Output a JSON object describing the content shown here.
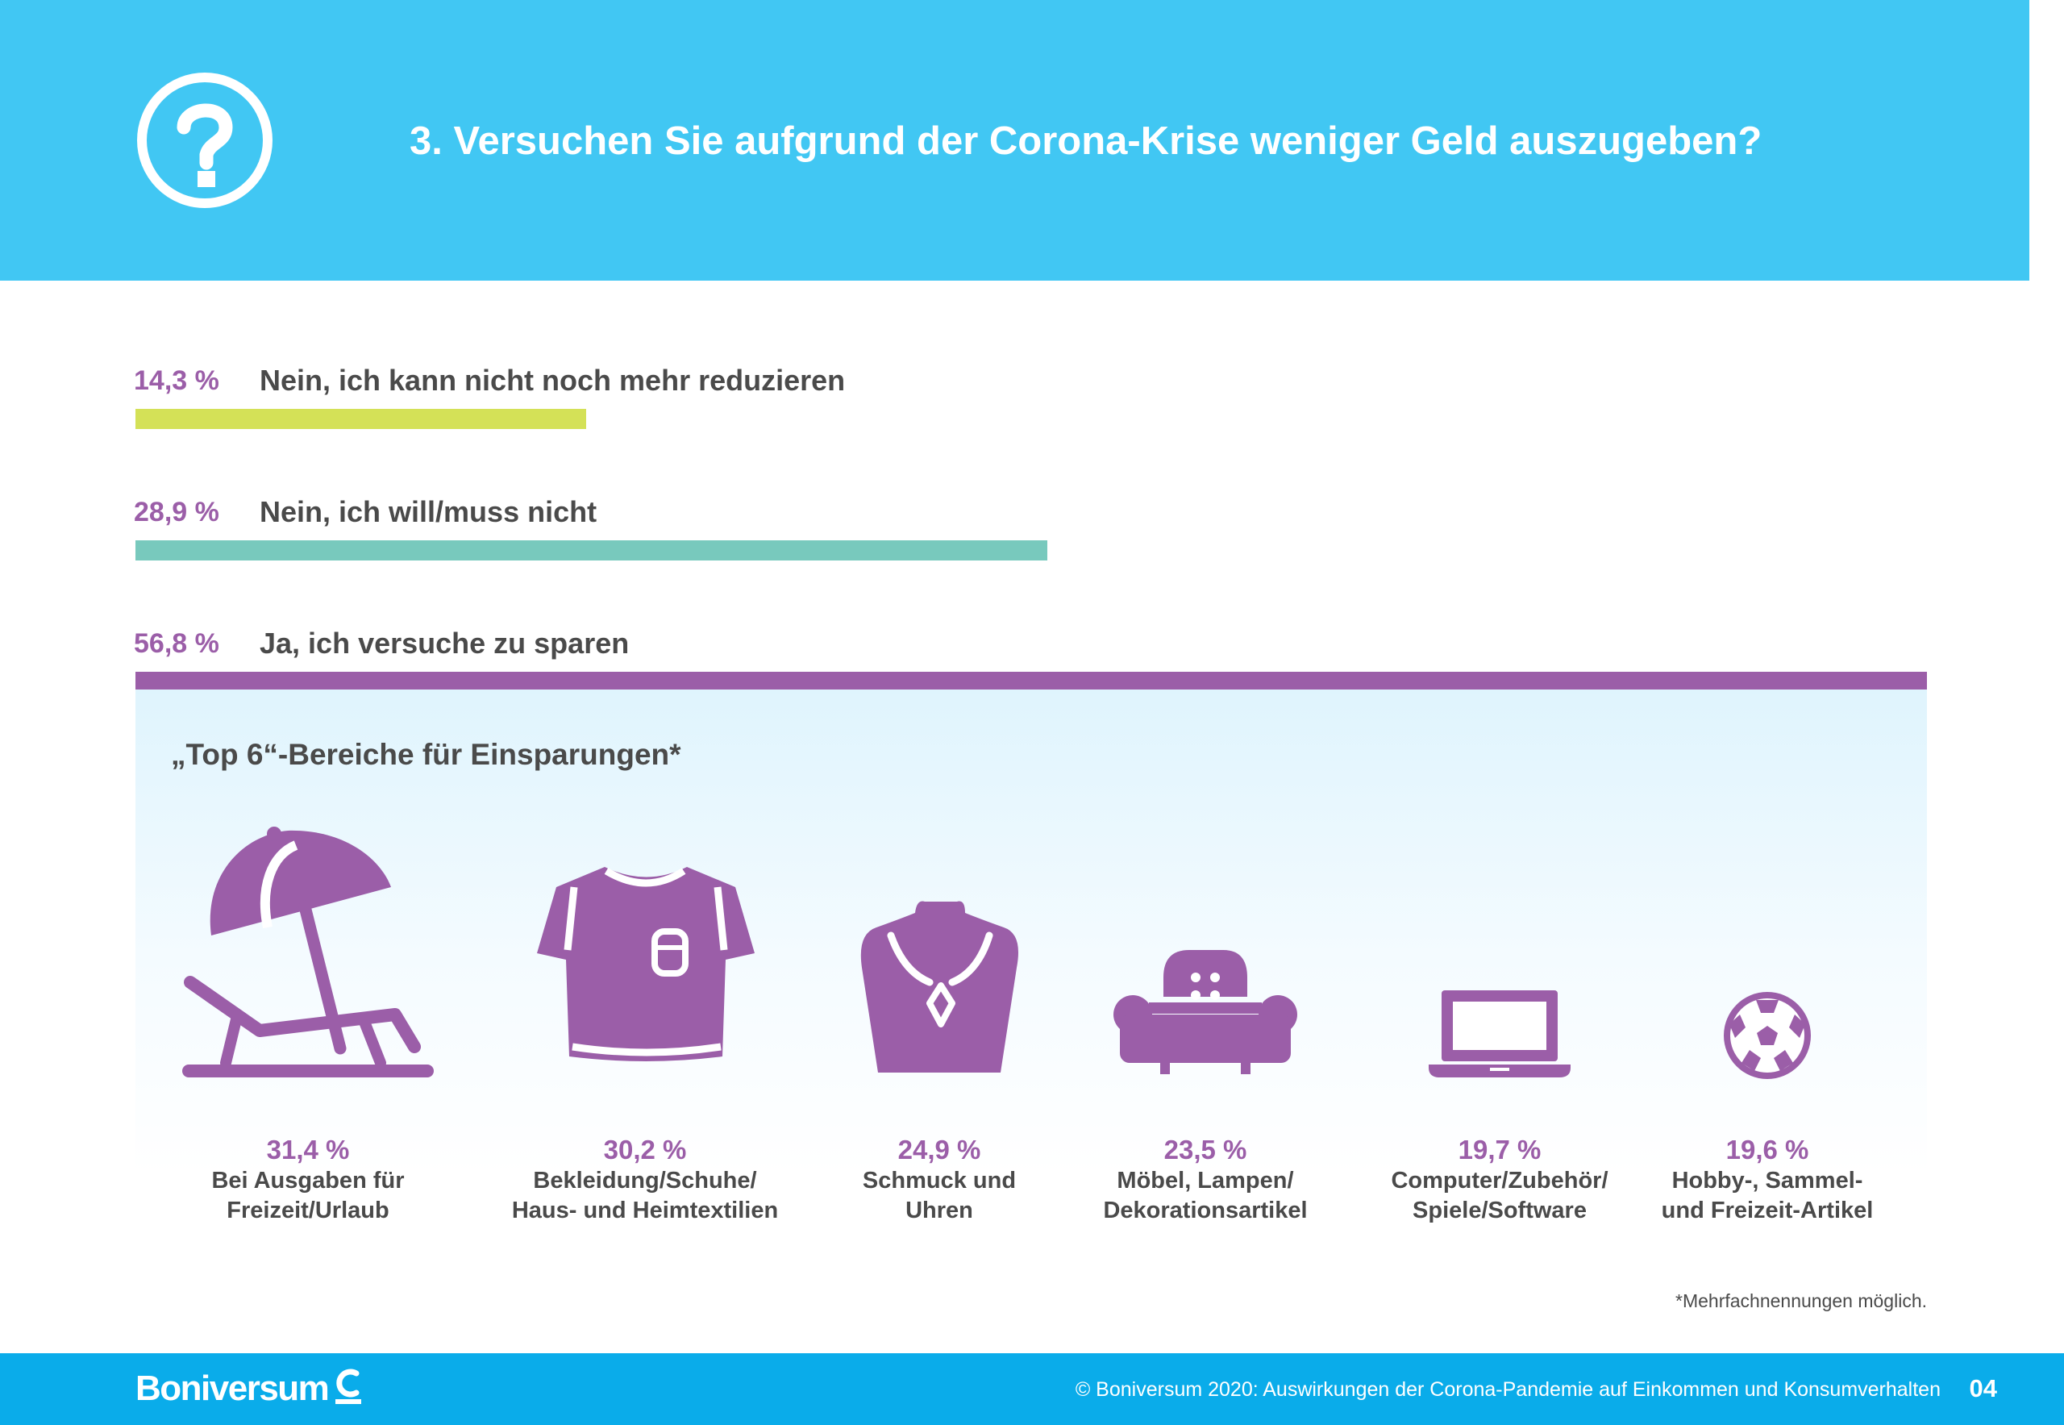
{
  "header": {
    "title": "3. Versuchen Sie aufgrund der Corona-Krise weniger Geld auszugeben?",
    "icon": "question-circle-icon",
    "background": "#41c7f3"
  },
  "chart_data": [
    {
      "type": "bar",
      "orientation": "horizontal",
      "categories": [
        "Nein, ich kann nicht noch mehr reduzieren",
        "Nein, ich will/muss nicht",
        "Ja, ich versuche zu sparen"
      ],
      "values": [
        14.3,
        28.9,
        56.8
      ],
      "value_labels": [
        "14,3 %",
        "28,9 %",
        "56,8 %"
      ],
      "colors": [
        "#d4e157",
        "#78c9bd",
        "#9b5ea8"
      ],
      "unit": "%"
    },
    {
      "type": "bar",
      "title": "„Top 6“-Bereiche für Einsparungen*",
      "categories": [
        "Bei Ausgaben für\nFreizeit/Urlaub",
        "Bekleidung/Schuhe/\nHaus- und Heimtextilien",
        "Schmuck und\nUhren",
        "Möbel, Lampen/\nDekorationsartikel",
        "Computer/Zubehör/\nSpiele/Software",
        "Hobby-, Sammel-\nund Freizeit-Artikel"
      ],
      "values": [
        31.4,
        30.2,
        24.9,
        23.5,
        19.7,
        19.6
      ],
      "value_labels": [
        "31,4 %",
        "30,2 %",
        "24,9 %",
        "23,5 %",
        "19,7 %",
        "19,6 %"
      ],
      "icons": [
        "beach-umbrella-lounger-icon",
        "t-shirt-icon",
        "necklace-bust-icon",
        "armchair-icon",
        "laptop-icon",
        "soccer-ball-icon"
      ],
      "color": "#9b5ea8",
      "unit": "%"
    }
  ],
  "footnote": "*Mehrfachnennungen möglich.",
  "footer": {
    "brand": "Boniversum",
    "copyright": "© Boniversum 2020: Auswirkungen der Corona-Pandemie auf Einkommen und Konsumverhalten",
    "page": "04",
    "background": "#0aacea"
  }
}
